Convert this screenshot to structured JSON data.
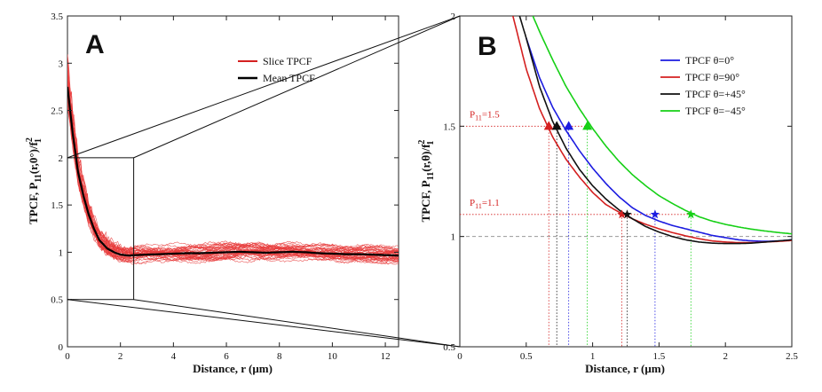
{
  "chart_data": [
    {
      "panel": "A",
      "type": "line",
      "xlabel": "Distance, r (μm)",
      "ylabel_parts": {
        "main": "TPCF, P",
        "sub": "11",
        "arg": "(r,0°)/f",
        "sup": "2",
        "sub2": "1"
      },
      "xlim": [
        0,
        12.5
      ],
      "ylim": [
        0,
        3.5
      ],
      "xticks": [
        "0",
        "2",
        "4",
        "6",
        "8",
        "10",
        "12"
      ],
      "yticks": [
        "0",
        "0.5",
        "1",
        "1.5",
        "2",
        "2.5",
        "3",
        "3.5"
      ],
      "legend": [
        "Slice TPCF",
        "Mean TPCF"
      ],
      "series": [
        {
          "name": "Mean TPCF",
          "color": "#000000",
          "x": [
            0,
            0.2,
            0.4,
            0.6,
            0.8,
            1.0,
            1.2,
            1.5,
            1.8,
            2.0,
            2.3,
            2.6,
            3.0,
            3.5,
            4.0,
            4.5,
            5.0,
            5.5,
            6.0,
            6.5,
            7.0,
            7.5,
            8.0,
            8.5,
            9.0,
            9.5,
            10.0,
            10.5,
            11.0,
            11.5,
            12.0,
            12.5
          ],
          "values": [
            2.75,
            2.25,
            1.85,
            1.6,
            1.4,
            1.25,
            1.13,
            1.04,
            0.995,
            0.975,
            0.965,
            0.97,
            0.975,
            0.98,
            0.985,
            0.99,
            0.99,
            0.995,
            1.0,
            1.005,
            1.0,
            0.995,
            1.0,
            1.005,
            1.0,
            0.99,
            0.985,
            0.98,
            0.98,
            0.975,
            0.97,
            0.965
          ]
        }
      ],
      "slice_count": 40,
      "zoom_box": {
        "x": [
          0,
          2.5
        ],
        "y": [
          0.5,
          2
        ]
      }
    },
    {
      "panel": "B",
      "type": "line",
      "xlabel": "Distance, r (μm)",
      "ylabel_parts": {
        "main": "TPCF, P",
        "sub": "11",
        "arg": "(r,θ)/f",
        "sup": "2",
        "sub2": "1"
      },
      "xlim": [
        0,
        2.5
      ],
      "ylim": [
        0.5,
        2
      ],
      "xticks": [
        "0",
        "0.5",
        "1",
        "1.5",
        "2",
        "2.5"
      ],
      "yticks": [
        "0.5",
        "1",
        "1.5",
        "2"
      ],
      "series": [
        {
          "name": "TPCF θ=0°",
          "color": "#1c1ce0",
          "x": [
            0.5,
            0.6,
            0.7,
            0.8,
            0.9,
            1.0,
            1.1,
            1.2,
            1.3,
            1.4,
            1.5,
            1.6,
            1.7,
            1.8,
            1.9,
            2.0,
            2.1,
            2.2,
            2.3,
            2.4,
            2.5
          ],
          "values": [
            1.9,
            1.72,
            1.585,
            1.48,
            1.39,
            1.31,
            1.24,
            1.18,
            1.13,
            1.095,
            1.07,
            1.05,
            1.035,
            1.02,
            1.005,
            0.995,
            0.985,
            0.98,
            0.978,
            0.98,
            0.985
          ]
        },
        {
          "name": "TPCF θ=90°",
          "color": "#d42020",
          "x": [
            0.4,
            0.5,
            0.6,
            0.7,
            0.8,
            0.9,
            1.0,
            1.1,
            1.2,
            1.3,
            1.4,
            1.5,
            1.6,
            1.7,
            1.8,
            1.9,
            2.0,
            2.1,
            2.2,
            2.3,
            2.4,
            2.5
          ],
          "values": [
            2.0,
            1.76,
            1.58,
            1.45,
            1.35,
            1.27,
            1.2,
            1.145,
            1.11,
            1.08,
            1.055,
            1.035,
            1.018,
            1.003,
            0.99,
            0.98,
            0.975,
            0.972,
            0.972,
            0.975,
            0.978,
            0.982
          ]
        },
        {
          "name": "TPCF θ=+45°",
          "color": "#111111",
          "x": [
            0.45,
            0.5,
            0.6,
            0.7,
            0.8,
            0.9,
            1.0,
            1.1,
            1.2,
            1.3,
            1.4,
            1.5,
            1.6,
            1.7,
            1.8,
            1.9,
            2.0,
            2.1,
            2.2,
            2.3,
            2.4,
            2.5
          ],
          "values": [
            2.0,
            1.9,
            1.68,
            1.52,
            1.4,
            1.305,
            1.23,
            1.17,
            1.12,
            1.08,
            1.045,
            1.02,
            1.0,
            0.985,
            0.975,
            0.97,
            0.968,
            0.968,
            0.97,
            0.975,
            0.98,
            0.985
          ]
        },
        {
          "name": "TPCF θ=−45°",
          "color": "#16d016",
          "x": [
            0.55,
            0.6,
            0.7,
            0.8,
            0.9,
            1.0,
            1.1,
            1.2,
            1.3,
            1.4,
            1.5,
            1.6,
            1.7,
            1.8,
            1.9,
            2.0,
            2.1,
            2.2,
            2.3,
            2.4,
            2.5
          ],
          "values": [
            2.0,
            1.93,
            1.8,
            1.68,
            1.58,
            1.49,
            1.41,
            1.34,
            1.28,
            1.23,
            1.185,
            1.15,
            1.118,
            1.09,
            1.07,
            1.055,
            1.043,
            1.033,
            1.025,
            1.018,
            1.012
          ]
        }
      ],
      "markers": [
        {
          "series": "TPCF θ=90°",
          "shape": "triangle",
          "x": 0.67,
          "y": 1.5
        },
        {
          "series": "TPCF θ=+45°",
          "shape": "triangle",
          "x": 0.73,
          "y": 1.5
        },
        {
          "series": "TPCF θ=0°",
          "shape": "triangle",
          "x": 0.82,
          "y": 1.5
        },
        {
          "series": "TPCF θ=−45°",
          "shape": "triangle",
          "x": 0.96,
          "y": 1.5
        },
        {
          "series": "TPCF θ=90°",
          "shape": "star",
          "x": 1.22,
          "y": 1.1
        },
        {
          "series": "TPCF θ=+45°",
          "shape": "star",
          "x": 1.26,
          "y": 1.1
        },
        {
          "series": "TPCF θ=0°",
          "shape": "star",
          "x": 1.47,
          "y": 1.1
        },
        {
          "series": "TPCF θ=−45°",
          "shape": "star",
          "x": 1.74,
          "y": 1.1
        }
      ],
      "annotations": [
        {
          "main": "P",
          "sub": "11",
          "rest": "=1.5",
          "y": 1.5
        },
        {
          "main": "P",
          "sub": "11",
          "rest": "=1.1",
          "y": 1.1
        }
      ],
      "hline": 1.0
    }
  ],
  "panel_labels": [
    "A",
    "B"
  ]
}
